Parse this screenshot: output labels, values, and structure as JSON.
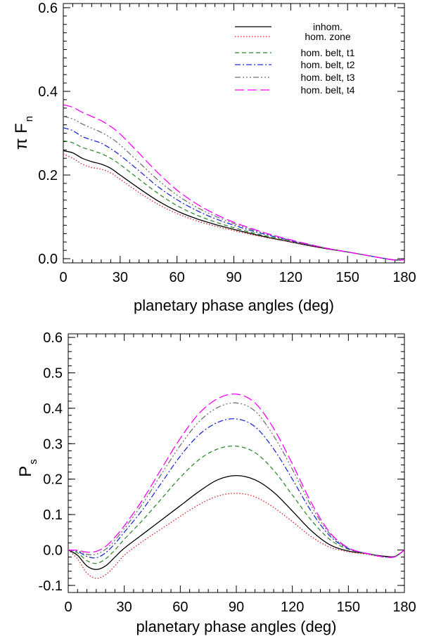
{
  "chart_data": [
    {
      "type": "line",
      "title": "",
      "xlabel": "planetary phase angles (deg)",
      "ylabel": {
        "main": "π F",
        "sub": "n"
      },
      "xlim": [
        0,
        180
      ],
      "ylim": [
        -0.01,
        0.61
      ],
      "xticks": [
        0,
        30,
        60,
        90,
        120,
        150,
        180
      ],
      "yticks": [
        0.0,
        0.2,
        0.4,
        0.6
      ],
      "ytick_labels": [
        "0.0",
        "0.2",
        "0.4",
        "0.6"
      ],
      "xtick_labels": [
        "0",
        "30",
        "60",
        "90",
        "120",
        "150",
        "180"
      ],
      "legend_position": "top-right",
      "x": [
        0,
        5,
        10,
        15,
        20,
        25,
        30,
        40,
        50,
        60,
        70,
        80,
        90,
        100,
        110,
        120,
        130,
        140,
        150,
        160,
        165,
        170,
        175,
        180
      ],
      "series": [
        {
          "name": "inhom.",
          "color": "#000000",
          "dash": "",
          "values": [
            0.258,
            0.253,
            0.24,
            0.232,
            0.226,
            0.216,
            0.2,
            0.168,
            0.138,
            0.114,
            0.096,
            0.082,
            0.07,
            0.059,
            0.049,
            0.04,
            0.031,
            0.023,
            0.016,
            0.008,
            0.004,
            0.0,
            -0.003,
            -0.003
          ]
        },
        {
          "name": "hom. zone",
          "color": "#d62020",
          "dash": "1.5,2.5",
          "values": [
            0.25,
            0.24,
            0.226,
            0.218,
            0.214,
            0.205,
            0.19,
            0.158,
            0.13,
            0.108,
            0.091,
            0.078,
            0.067,
            0.057,
            0.048,
            0.04,
            0.031,
            0.023,
            0.016,
            0.008,
            0.004,
            0.0,
            -0.003,
            -0.003
          ]
        },
        {
          "name": "hom. belt, t1",
          "color": "#2e8b2e",
          "dash": "6,4",
          "values": [
            0.282,
            0.277,
            0.266,
            0.259,
            0.251,
            0.24,
            0.225,
            0.19,
            0.156,
            0.127,
            0.105,
            0.088,
            0.074,
            0.062,
            0.051,
            0.042,
            0.033,
            0.024,
            0.016,
            0.008,
            0.004,
            0.0,
            -0.003,
            -0.003
          ]
        },
        {
          "name": "hom. belt, t2",
          "color": "#2030d0",
          "dash": "8,3,2,3",
          "values": [
            0.313,
            0.306,
            0.292,
            0.284,
            0.276,
            0.263,
            0.247,
            0.21,
            0.172,
            0.141,
            0.116,
            0.096,
            0.08,
            0.066,
            0.054,
            0.043,
            0.033,
            0.024,
            0.016,
            0.008,
            0.004,
            0.0,
            -0.003,
            -0.003
          ]
        },
        {
          "name": "hom. belt, t3",
          "color": "#707070",
          "dash": "8,3,2,3,2,3,2,3",
          "values": [
            0.34,
            0.334,
            0.322,
            0.312,
            0.302,
            0.289,
            0.272,
            0.23,
            0.188,
            0.152,
            0.124,
            0.102,
            0.084,
            0.069,
            0.056,
            0.044,
            0.034,
            0.024,
            0.016,
            0.008,
            0.004,
            0.0,
            -0.003,
            -0.003
          ]
        },
        {
          "name": "hom. belt, t4",
          "color": "#ff00ff",
          "dash": "13,5",
          "values": [
            0.368,
            0.362,
            0.35,
            0.34,
            0.33,
            0.316,
            0.298,
            0.252,
            0.205,
            0.164,
            0.132,
            0.107,
            0.087,
            0.071,
            0.057,
            0.045,
            0.034,
            0.024,
            0.016,
            0.008,
            0.004,
            0.0,
            -0.003,
            -0.003
          ]
        }
      ]
    },
    {
      "type": "line",
      "title": "",
      "xlabel": "planetary phase angles (deg)",
      "ylabel": {
        "main": "P",
        "sub": "s"
      },
      "xlim": [
        0,
        180
      ],
      "ylim": [
        -0.12,
        0.61
      ],
      "xticks": [
        0,
        30,
        60,
        90,
        120,
        150,
        180
      ],
      "yticks": [
        -0.1,
        0.0,
        0.1,
        0.2,
        0.3,
        0.4,
        0.5,
        0.6
      ],
      "ytick_labels": [
        "-0.1",
        "0.0",
        "0.1",
        "0.2",
        "0.3",
        "0.4",
        "0.5",
        "0.6"
      ],
      "xtick_labels": [
        "0",
        "30",
        "60",
        "90",
        "120",
        "150",
        "180"
      ],
      "x": [
        0,
        5,
        10,
        15,
        20,
        25,
        30,
        40,
        50,
        60,
        70,
        80,
        90,
        100,
        110,
        120,
        130,
        140,
        150,
        160,
        165,
        170,
        175,
        180
      ],
      "series": [
        {
          "name": "inhom.",
          "color": "#000000",
          "dash": "",
          "values": [
            0.0,
            -0.015,
            -0.045,
            -0.055,
            -0.045,
            -0.02,
            0.005,
            0.045,
            0.085,
            0.125,
            0.165,
            0.198,
            0.21,
            0.198,
            0.163,
            0.11,
            0.055,
            0.015,
            -0.003,
            -0.01,
            -0.015,
            -0.018,
            -0.018,
            0.0
          ]
        },
        {
          "name": "hom. zone",
          "color": "#d62020",
          "dash": "1.5,2.5",
          "values": [
            0.0,
            -0.025,
            -0.065,
            -0.08,
            -0.07,
            -0.045,
            -0.015,
            0.025,
            0.06,
            0.095,
            0.128,
            0.152,
            0.16,
            0.15,
            0.12,
            0.08,
            0.038,
            0.008,
            -0.005,
            -0.012,
            -0.017,
            -0.02,
            -0.019,
            0.0
          ]
        },
        {
          "name": "hom. belt, t1",
          "color": "#2e8b2e",
          "dash": "6,4",
          "values": [
            0.0,
            -0.008,
            -0.03,
            -0.038,
            -0.025,
            0.0,
            0.03,
            0.085,
            0.145,
            0.205,
            0.255,
            0.285,
            0.293,
            0.275,
            0.225,
            0.155,
            0.085,
            0.03,
            0.002,
            -0.01,
            -0.016,
            -0.02,
            -0.019,
            0.0
          ]
        },
        {
          "name": "hom. belt, t2",
          "color": "#2030d0",
          "dash": "8,3,2,3",
          "values": [
            0.0,
            -0.004,
            -0.018,
            -0.022,
            -0.008,
            0.018,
            0.05,
            0.115,
            0.19,
            0.265,
            0.325,
            0.36,
            0.37,
            0.348,
            0.285,
            0.2,
            0.11,
            0.04,
            0.004,
            -0.01,
            -0.016,
            -0.02,
            -0.019,
            0.0
          ]
        },
        {
          "name": "hom. belt, t3",
          "color": "#707070",
          "dash": "8,3,2,3,2,3,2,3",
          "values": [
            0.0,
            -0.002,
            -0.012,
            -0.012,
            0.002,
            0.028,
            0.06,
            0.132,
            0.215,
            0.295,
            0.362,
            0.402,
            0.415,
            0.392,
            0.322,
            0.228,
            0.125,
            0.046,
            0.005,
            -0.01,
            -0.016,
            -0.02,
            -0.019,
            0.0
          ]
        },
        {
          "name": "hom. belt, t4",
          "color": "#ff00ff",
          "dash": "13,5",
          "values": [
            0.0,
            -0.001,
            -0.006,
            -0.004,
            0.01,
            0.036,
            0.068,
            0.143,
            0.23,
            0.315,
            0.385,
            0.427,
            0.44,
            0.415,
            0.343,
            0.243,
            0.135,
            0.05,
            0.006,
            -0.01,
            -0.016,
            -0.02,
            -0.019,
            0.0
          ]
        }
      ]
    }
  ]
}
